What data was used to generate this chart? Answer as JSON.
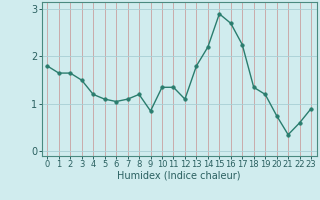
{
  "x": [
    0,
    1,
    2,
    3,
    4,
    5,
    6,
    7,
    8,
    9,
    10,
    11,
    12,
    13,
    14,
    15,
    16,
    17,
    18,
    19,
    20,
    21,
    22,
    23
  ],
  "y": [
    1.8,
    1.65,
    1.65,
    1.5,
    1.2,
    1.1,
    1.05,
    1.1,
    1.2,
    0.85,
    1.35,
    1.35,
    1.1,
    1.8,
    2.2,
    2.9,
    2.7,
    2.25,
    1.35,
    1.2,
    0.75,
    0.35,
    0.6,
    0.9
  ],
  "line_color": "#2a7d6e",
  "marker": "o",
  "markersize": 2.5,
  "linewidth": 1.0,
  "bg_color": "#d0ecee",
  "grid_color": "#a8cfd4",
  "xlabel": "Humidex (Indice chaleur)",
  "xlabel_fontsize": 7,
  "tick_fontsize": 6,
  "ylim": [
    -0.1,
    3.15
  ],
  "xlim": [
    -0.5,
    23.5
  ],
  "yticks": [
    0,
    1,
    2,
    3
  ],
  "xticks": [
    0,
    1,
    2,
    3,
    4,
    5,
    6,
    7,
    8,
    9,
    10,
    11,
    12,
    13,
    14,
    15,
    16,
    17,
    18,
    19,
    20,
    21,
    22,
    23
  ],
  "spine_color": "#4a8a80",
  "axis_color": "#2a6060"
}
